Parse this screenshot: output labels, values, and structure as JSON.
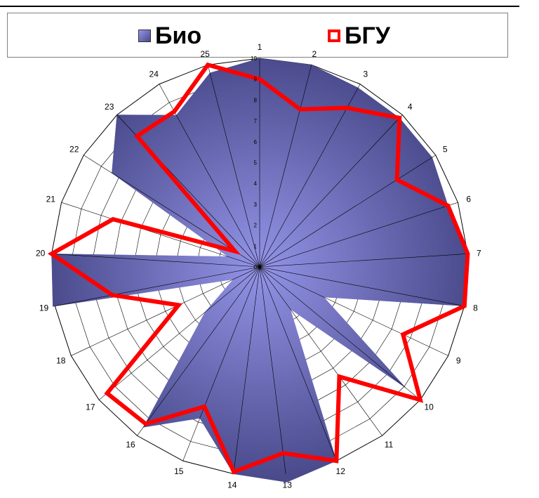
{
  "legend": {
    "series1_label": "Био",
    "series2_label": "БГУ"
  },
  "colors": {
    "series1_dark": "#4a4a8c",
    "series1_light": "#9494e8",
    "series2": "#ff0000",
    "grid": "#000000"
  },
  "chart_data": {
    "type": "radar",
    "categories": [
      "1",
      "2",
      "3",
      "4",
      "5",
      "6",
      "7",
      "8",
      "9",
      "10",
      "11",
      "12",
      "13",
      "14",
      "15",
      "16",
      "17",
      "18",
      "19",
      "20",
      "21",
      "22",
      "23",
      "24",
      "25"
    ],
    "r_ticks": [
      "0",
      "1",
      "2",
      "3",
      "4",
      "5",
      "6",
      "7",
      "8",
      "9",
      "10"
    ],
    "rlim": [
      0,
      10
    ],
    "grid": true,
    "legend_position": "top",
    "series": [
      {
        "name": "Био",
        "type": "filled",
        "values": [
          10,
          10,
          9.8,
          9.8,
          9.8,
          9.5,
          10,
          10,
          3.4,
          9.1,
          2.5,
          10,
          10.4,
          10,
          7.8,
          9.5,
          3.4,
          1.4,
          10.1,
          10,
          1.6,
          8.4,
          10,
          8.3,
          9.6
        ]
      },
      {
        "name": "БГУ",
        "type": "line",
        "values": [
          9,
          7.8,
          8.7,
          9.8,
          7.8,
          9.5,
          10,
          10,
          7.6,
          10,
          6.5,
          10,
          9,
          9.9,
          7.2,
          9.3,
          9.5,
          4.3,
          7.2,
          10,
          7.4,
          1.4,
          8.6,
          8.5,
          10
        ]
      }
    ]
  }
}
